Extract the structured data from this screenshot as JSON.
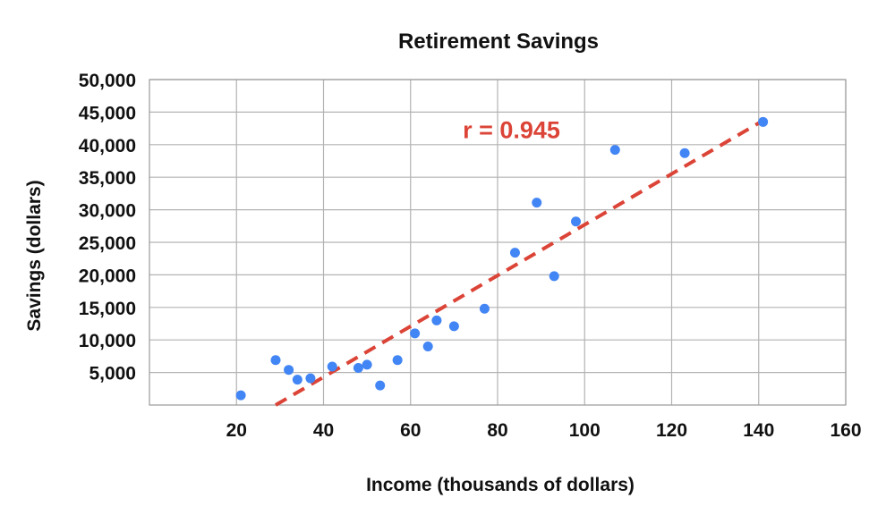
{
  "chart_data": {
    "type": "scatter",
    "title": "Retirement Savings",
    "xlabel": "Income (thousands of dollars)",
    "ylabel": "Savings (dollars)",
    "xlim": [
      0,
      160
    ],
    "ylim": [
      0,
      50000
    ],
    "x_ticks": [
      20,
      40,
      60,
      80,
      100,
      120,
      140,
      160
    ],
    "x_tick_labels": [
      "20",
      "40",
      "60",
      "80",
      "100",
      "120",
      "140",
      "160"
    ],
    "y_ticks": [
      5000,
      10000,
      15000,
      20000,
      25000,
      30000,
      35000,
      40000,
      45000,
      50000
    ],
    "y_tick_labels": [
      "5,000",
      "10,000",
      "15,000",
      "20,000",
      "25,000",
      "30,000",
      "35,000",
      "40,000",
      "45,000",
      "50,000"
    ],
    "grid": true,
    "point_color": "#4285f4",
    "trendline_color": "#db4437",
    "points": [
      {
        "x": 21,
        "y": 1500
      },
      {
        "x": 29,
        "y": 6900
      },
      {
        "x": 32,
        "y": 5400
      },
      {
        "x": 34,
        "y": 3900
      },
      {
        "x": 37,
        "y": 4100
      },
      {
        "x": 42,
        "y": 5900
      },
      {
        "x": 48,
        "y": 5700
      },
      {
        "x": 50,
        "y": 6200
      },
      {
        "x": 53,
        "y": 3000
      },
      {
        "x": 57,
        "y": 6900
      },
      {
        "x": 61,
        "y": 11000
      },
      {
        "x": 64,
        "y": 9000
      },
      {
        "x": 66,
        "y": 13000
      },
      {
        "x": 70,
        "y": 12100
      },
      {
        "x": 77,
        "y": 14800
      },
      {
        "x": 84,
        "y": 23400
      },
      {
        "x": 89,
        "y": 31100
      },
      {
        "x": 93,
        "y": 19800
      },
      {
        "x": 98,
        "y": 28200
      },
      {
        "x": 107,
        "y": 39200
      },
      {
        "x": 123,
        "y": 38700
      },
      {
        "x": 141,
        "y": 43500
      }
    ],
    "trendline": {
      "x0": 29,
      "y0": 0,
      "x1": 141,
      "y1": 43700
    },
    "annotation": {
      "text": "r = 0.945",
      "x": 72,
      "y": 41000
    }
  }
}
